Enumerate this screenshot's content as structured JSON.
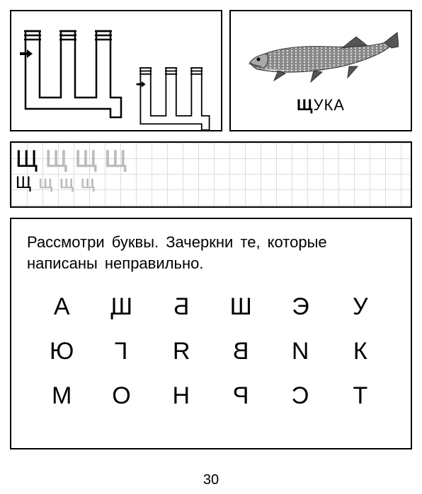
{
  "fish": {
    "label_bold": "Щ",
    "label_rest": "УКА"
  },
  "grid_practice": {
    "row1": {
      "solid": "Щ",
      "dotted": [
        "Щ",
        "Щ",
        "Щ"
      ]
    },
    "row2": {
      "solid": "Щ",
      "dotted": [
        "щ",
        "щ",
        "щ"
      ]
    }
  },
  "exercise": {
    "instruction_l1": "Рассмотри  буквы.  Зачеркни  те,  которые",
    "instruction_l2": "написаны неправильно.",
    "letters": [
      {
        "t": "А",
        "m": false
      },
      {
        "t": "Щ",
        "m": true
      },
      {
        "t": "Б",
        "m": true
      },
      {
        "t": "Ш",
        "m": false
      },
      {
        "t": "Э",
        "m": false
      },
      {
        "t": "У",
        "m": false
      },
      {
        "t": "Ю",
        "m": false
      },
      {
        "t": "Г",
        "m": true
      },
      {
        "t": "Я",
        "m": true
      },
      {
        "t": "В",
        "m": true
      },
      {
        "t": "И",
        "m": true
      },
      {
        "t": "К",
        "m": false
      },
      {
        "t": "М",
        "m": true
      },
      {
        "t": "О",
        "m": false
      },
      {
        "t": "Н",
        "m": false
      },
      {
        "t": "Р",
        "m": true
      },
      {
        "t": "С",
        "m": true
      },
      {
        "t": "Т",
        "m": false
      }
    ]
  },
  "page": "30"
}
